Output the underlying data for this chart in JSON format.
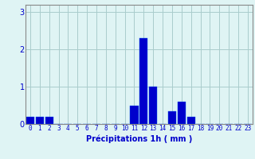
{
  "hours": [
    0,
    1,
    2,
    3,
    4,
    5,
    6,
    7,
    8,
    9,
    10,
    11,
    12,
    13,
    14,
    15,
    16,
    17,
    18,
    19,
    20,
    21,
    22,
    23
  ],
  "values": [
    0.2,
    0.2,
    0.2,
    0.0,
    0.0,
    0.0,
    0.0,
    0.0,
    0.0,
    0.0,
    0.0,
    0.5,
    2.3,
    1.0,
    0.0,
    0.35,
    0.6,
    0.2,
    0.0,
    0.0,
    0.0,
    0.0,
    0.0,
    0.0
  ],
  "bar_color": "#0000cc",
  "bar_edge_color": "#0055ee",
  "background_color": "#dff4f4",
  "grid_color": "#aacccc",
  "xlabel": "Précipitations 1h ( mm )",
  "xlabel_color": "#0000cc",
  "ylim": [
    0,
    3.2
  ],
  "yticks": [
    0,
    1,
    2,
    3
  ],
  "tick_color": "#0000cc",
  "spine_color": "#888888",
  "xtick_fontsize": 5.5,
  "ytick_fontsize": 7,
  "xlabel_fontsize": 7
}
